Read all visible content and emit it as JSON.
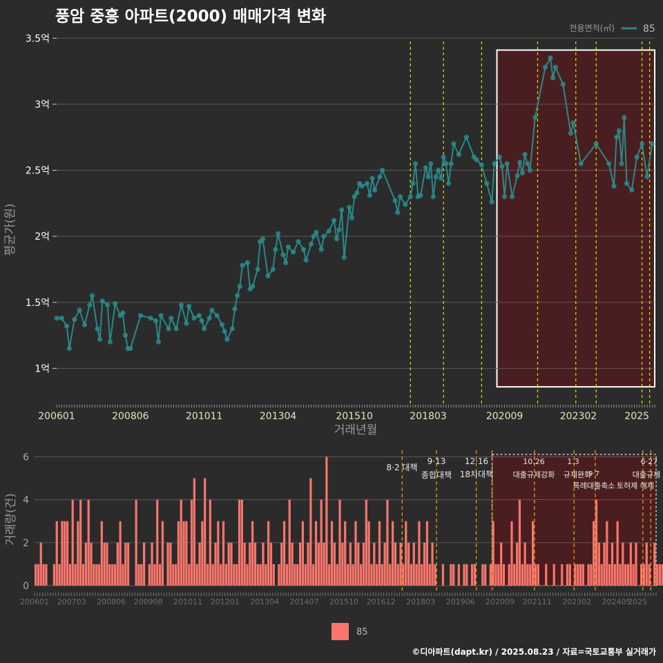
{
  "title": "풍암 중흥 아파트(2000) 매매가격 변화",
  "footer": "©디아파트(dapt.kr) / 2025.08.23 / 자료=국토교통부 실거래가",
  "colors": {
    "background": "#2b2b2b",
    "line": "#2a8a8a",
    "bar": "#f8766d",
    "highlight_fill": "#4a1e20",
    "policy_line_yellow": "#e6e600",
    "policy_line_orange": "#e69f00",
    "grid": "#5a5a5a",
    "text_light": "#ffffff",
    "text_dim": "#bbbbbb"
  },
  "chart_data": [
    {
      "type": "line",
      "title": "풍암 중흥 아파트(2000) 매매가격 변화",
      "xlabel": "거래년월",
      "ylabel": "평균가(원)",
      "x_range": [
        "2006-01",
        "2025-08"
      ],
      "x_ticks": [
        "200601",
        "200806",
        "201011",
        "201304",
        "201510",
        "201803",
        "202009",
        "202302",
        "2025"
      ],
      "y_ticks": [
        {
          "value": 1.0,
          "label": "1억"
        },
        {
          "value": 1.5,
          "label": "1.5억"
        },
        {
          "value": 2.0,
          "label": "2억"
        },
        {
          "value": 2.5,
          "label": "2.5억"
        },
        {
          "value": 3.0,
          "label": "3억"
        },
        {
          "value": 3.5,
          "label": "3.5억"
        }
      ],
      "ylim": [
        0.73,
        3.58
      ],
      "legend": {
        "title": "전용면적(㎡)",
        "label": "85",
        "position": "top-right"
      },
      "highlight_region": {
        "x_start": "2020-06",
        "x_end": "2025-08",
        "y_start": 0.86,
        "y_end": 3.41
      },
      "policy_lines": [
        "2017-08",
        "2018-09",
        "2019-12",
        "2021-10",
        "2023-01",
        "2023-09",
        "2025-03",
        "2025-06"
      ],
      "series": [
        {
          "name": "85",
          "points": [
            [
              "2006-01",
              1.38
            ],
            [
              "2006-03",
              1.38
            ],
            [
              "2006-05",
              1.32
            ],
            [
              "2006-06",
              1.15
            ],
            [
              "2006-08",
              1.37
            ],
            [
              "2006-10",
              1.44
            ],
            [
              "2006-12",
              1.33
            ],
            [
              "2007-02",
              1.48
            ],
            [
              "2007-03",
              1.55
            ],
            [
              "2007-05",
              1.3
            ],
            [
              "2007-06",
              1.22
            ],
            [
              "2007-07",
              1.51
            ],
            [
              "2007-09",
              1.48
            ],
            [
              "2007-10",
              1.2
            ],
            [
              "2007-12",
              1.49
            ],
            [
              "2008-02",
              1.4
            ],
            [
              "2008-03",
              1.42
            ],
            [
              "2008-04",
              1.25
            ],
            [
              "2008-05",
              1.15
            ],
            [
              "2008-06",
              1.15
            ],
            [
              "2008-10",
              1.4
            ],
            [
              "2009-02",
              1.38
            ],
            [
              "2009-04",
              1.36
            ],
            [
              "2009-05",
              1.2
            ],
            [
              "2009-06",
              1.4
            ],
            [
              "2009-09",
              1.3
            ],
            [
              "2009-10",
              1.38
            ],
            [
              "2009-12",
              1.3
            ],
            [
              "2010-02",
              1.48
            ],
            [
              "2010-04",
              1.34
            ],
            [
              "2010-05",
              1.47
            ],
            [
              "2010-07",
              1.38
            ],
            [
              "2010-09",
              1.4
            ],
            [
              "2010-10",
              1.36
            ],
            [
              "2010-11",
              1.3
            ],
            [
              "2011-01",
              1.38
            ],
            [
              "2011-02",
              1.44
            ],
            [
              "2011-04",
              1.4
            ],
            [
              "2011-06",
              1.33
            ],
            [
              "2011-07",
              1.28
            ],
            [
              "2011-08",
              1.22
            ],
            [
              "2011-10",
              1.3
            ],
            [
              "2011-11",
              1.45
            ],
            [
              "2011-12",
              1.55
            ],
            [
              "2012-01",
              1.62
            ],
            [
              "2012-02",
              1.78
            ],
            [
              "2012-04",
              1.8
            ],
            [
              "2012-05",
              1.6
            ],
            [
              "2012-06",
              1.62
            ],
            [
              "2012-08",
              1.75
            ],
            [
              "2012-09",
              1.96
            ],
            [
              "2012-10",
              1.98
            ],
            [
              "2012-12",
              1.7
            ],
            [
              "2013-02",
              1.75
            ],
            [
              "2013-03",
              1.9
            ],
            [
              "2013-04",
              2.02
            ],
            [
              "2013-06",
              1.86
            ],
            [
              "2013-07",
              1.8
            ],
            [
              "2013-08",
              1.92
            ],
            [
              "2013-10",
              1.88
            ],
            [
              "2013-12",
              1.96
            ],
            [
              "2014-02",
              1.9
            ],
            [
              "2014-03",
              1.82
            ],
            [
              "2014-05",
              1.94
            ],
            [
              "2014-06",
              2.0
            ],
            [
              "2014-07",
              2.03
            ],
            [
              "2014-09",
              1.9
            ],
            [
              "2014-10",
              2.0
            ],
            [
              "2014-12",
              2.04
            ],
            [
              "2015-02",
              2.12
            ],
            [
              "2015-03",
              1.98
            ],
            [
              "2015-04",
              2.05
            ],
            [
              "2015-05",
              2.2
            ],
            [
              "2015-06",
              1.84
            ],
            [
              "2015-08",
              2.22
            ],
            [
              "2015-09",
              2.14
            ],
            [
              "2015-10",
              2.3
            ],
            [
              "2015-11",
              2.33
            ],
            [
              "2015-12",
              2.4
            ],
            [
              "2016-01",
              2.38
            ],
            [
              "2016-03",
              2.4
            ],
            [
              "2016-04",
              2.31
            ],
            [
              "2016-05",
              2.44
            ],
            [
              "2016-06",
              2.35
            ],
            [
              "2016-08",
              2.45
            ],
            [
              "2016-09",
              2.5
            ],
            [
              "2017-02",
              2.27
            ],
            [
              "2017-03",
              2.18
            ],
            [
              "2017-04",
              2.3
            ],
            [
              "2017-06",
              2.24
            ],
            [
              "2017-08",
              2.3
            ],
            [
              "2017-09",
              2.4
            ],
            [
              "2017-10",
              2.55
            ],
            [
              "2017-11",
              2.3
            ],
            [
              "2017-12",
              2.31
            ],
            [
              "2018-02",
              2.52
            ],
            [
              "2018-03",
              2.45
            ],
            [
              "2018-04",
              2.55
            ],
            [
              "2018-05",
              2.3
            ],
            [
              "2018-06",
              2.45
            ],
            [
              "2018-07",
              2.5
            ],
            [
              "2018-08",
              2.44
            ],
            [
              "2018-09",
              2.6
            ],
            [
              "2018-10",
              2.55
            ],
            [
              "2018-11",
              2.4
            ],
            [
              "2018-12",
              2.55
            ],
            [
              "2019-01",
              2.7
            ],
            [
              "2019-03",
              2.62
            ],
            [
              "2019-06",
              2.75
            ],
            [
              "2019-09",
              2.6
            ],
            [
              "2019-10",
              2.58
            ],
            [
              "2019-12",
              2.54
            ],
            [
              "2020-02",
              2.4
            ],
            [
              "2020-04",
              2.26
            ],
            [
              "2020-05",
              2.55
            ],
            [
              "2020-07",
              2.6
            ],
            [
              "2020-08",
              2.53
            ],
            [
              "2020-09",
              2.3
            ],
            [
              "2020-10",
              2.55
            ],
            [
              "2020-12",
              2.3
            ],
            [
              "2021-02",
              2.46
            ],
            [
              "2021-03",
              2.56
            ],
            [
              "2021-04",
              2.48
            ],
            [
              "2021-05",
              2.62
            ],
            [
              "2021-06",
              2.55
            ],
            [
              "2021-07",
              2.5
            ],
            [
              "2021-09",
              2.9
            ],
            [
              "2022-01",
              3.28
            ],
            [
              "2022-03",
              3.35
            ],
            [
              "2022-04",
              3.2
            ],
            [
              "2022-05",
              3.28
            ],
            [
              "2022-08",
              3.15
            ],
            [
              "2022-11",
              2.78
            ],
            [
              "2022-12",
              2.86
            ],
            [
              "2023-03",
              2.55
            ],
            [
              "2023-09",
              2.7
            ],
            [
              "2024-02",
              2.55
            ],
            [
              "2024-04",
              2.38
            ],
            [
              "2024-05",
              2.75
            ],
            [
              "2024-06",
              2.8
            ],
            [
              "2024-07",
              2.55
            ],
            [
              "2024-08",
              2.9
            ],
            [
              "2024-09",
              2.4
            ],
            [
              "2024-11",
              2.35
            ],
            [
              "2025-01",
              2.6
            ],
            [
              "2025-03",
              2.7
            ],
            [
              "2025-05",
              2.45
            ],
            [
              "2025-07",
              2.7
            ]
          ]
        }
      ]
    },
    {
      "type": "bar",
      "xlabel": "",
      "ylabel": "거래량(건)",
      "x_range": [
        "2006-01",
        "2025-08"
      ],
      "x_ticks": [
        "200601",
        "200703",
        "200806",
        "200908",
        "201011",
        "201201",
        "201304",
        "201407",
        "201510",
        "201612",
        "201803",
        "201906",
        "202009",
        "202111",
        "202302",
        "202405",
        "2025"
      ],
      "y_ticks": [
        0,
        2,
        4,
        6
      ],
      "ylim": [
        0,
        6.3
      ],
      "legend": {
        "label": "85",
        "position": "bottom"
      },
      "highlight_region": {
        "x_start": "2020-06",
        "x_end": "2025-08"
      },
      "policy_lines": [
        {
          "date": "2017-08",
          "label": "8·2 대책"
        },
        {
          "date": "2018-09",
          "label": "9·13 종합대책"
        },
        {
          "date": "2019-12",
          "label": "12·16 18차대책"
        },
        {
          "date": "2020-06",
          "label": ""
        },
        {
          "date": "2021-10",
          "label": "10·26 대출규제강화"
        },
        {
          "date": "2023-01",
          "label": "1·3 규제완화"
        },
        {
          "date": "2023-09",
          "label": "9·7 특례대출축소"
        },
        {
          "date": "2025-03",
          "label": "토허제 해제"
        },
        {
          "date": "2025-06",
          "label": "6·27 대출규제"
        }
      ],
      "annotations": [
        "8·2 대책",
        "9·13",
        "종합대책",
        "12·16",
        "18차대책",
        "10.26",
        "대출규제강화",
        "1.3",
        "규제완화",
        "9·7",
        "특례대출축소",
        "토허제 해제",
        "6·27",
        "대출규제"
      ],
      "volumes": [
        1,
        1,
        2,
        1,
        1,
        0,
        0,
        1,
        3,
        1,
        3,
        3,
        3,
        1,
        4,
        1,
        3,
        4,
        1,
        2,
        4,
        2,
        1,
        1,
        1,
        3,
        2,
        2,
        1,
        1,
        1,
        2,
        3,
        1,
        2,
        2,
        0,
        0,
        4,
        1,
        1,
        2,
        0,
        1,
        2,
        1,
        4,
        1,
        3,
        0,
        2,
        2,
        1,
        1,
        3,
        4,
        3,
        3,
        1,
        4,
        5,
        1,
        2,
        3,
        5,
        1,
        4,
        1,
        2,
        3,
        1,
        3,
        1,
        2,
        2,
        1,
        1,
        4,
        4,
        2,
        1,
        2,
        3,
        2,
        1,
        1,
        2,
        1,
        3,
        2,
        1,
        0,
        1,
        2,
        3,
        1,
        4,
        2,
        1,
        1,
        2,
        3,
        1,
        2,
        5,
        1,
        3,
        2,
        4,
        2,
        6,
        1,
        3,
        2,
        1,
        4,
        2,
        3,
        1,
        2,
        1,
        3,
        2,
        1,
        2,
        4,
        3,
        1,
        2,
        1,
        3,
        1,
        2,
        4,
        1,
        3,
        2,
        1,
        2,
        1,
        3,
        2,
        1,
        2,
        1,
        3,
        1,
        2,
        3,
        1,
        2,
        1,
        0,
        0,
        1,
        0,
        0,
        1,
        1,
        0,
        1,
        0,
        1,
        1,
        0,
        1,
        1,
        0,
        0,
        1,
        1,
        0,
        1,
        3,
        1,
        1,
        2,
        1,
        0,
        1,
        3,
        1,
        2,
        4,
        1,
        2,
        1,
        1,
        3,
        1,
        1,
        0,
        0,
        1,
        0,
        0,
        1,
        0,
        0,
        1,
        0,
        1,
        1,
        0,
        1,
        1,
        1,
        1,
        0,
        1,
        1,
        3,
        4,
        2,
        1,
        2,
        3,
        1,
        2,
        1,
        3,
        1,
        2,
        1,
        1,
        2,
        1,
        2,
        0,
        1,
        1,
        2,
        1,
        0,
        2,
        1,
        1,
        1,
        1,
        0,
        1,
        2,
        1,
        1,
        3,
        2,
        1,
        0,
        1,
        2,
        1,
        1,
        2,
        3,
        1,
        2,
        1,
        1,
        2,
        1,
        2,
        1,
        1,
        2,
        1,
        1,
        2,
        1,
        1,
        2
      ]
    }
  ]
}
